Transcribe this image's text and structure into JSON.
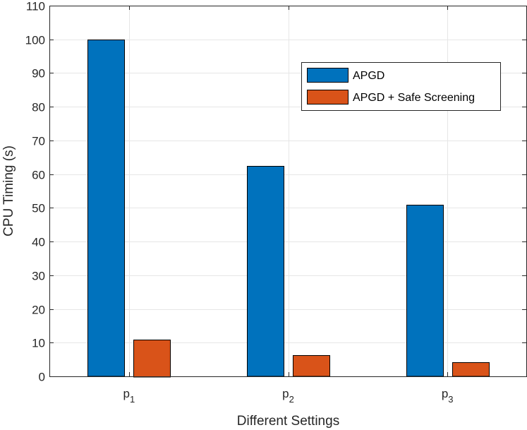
{
  "chart_data": {
    "type": "bar",
    "title": "",
    "xlabel": "Different Settings",
    "ylabel": "CPU Timing (s)",
    "ylim": [
      0,
      110
    ],
    "yticks": [
      0,
      10,
      20,
      30,
      40,
      50,
      60,
      70,
      80,
      90,
      100,
      110
    ],
    "grid": true,
    "legend_position": "top-right",
    "categories": [
      {
        "base": "p",
        "sub": "1"
      },
      {
        "base": "p",
        "sub": "2"
      },
      {
        "base": "p",
        "sub": "3"
      }
    ],
    "series": [
      {
        "name": "APGD",
        "color": "#0072BD",
        "values": [
          100,
          62.5,
          51
        ]
      },
      {
        "name": "APGD + Safe Screening",
        "color": "#D95319",
        "values": [
          11,
          6.3,
          4.2
        ]
      }
    ]
  }
}
